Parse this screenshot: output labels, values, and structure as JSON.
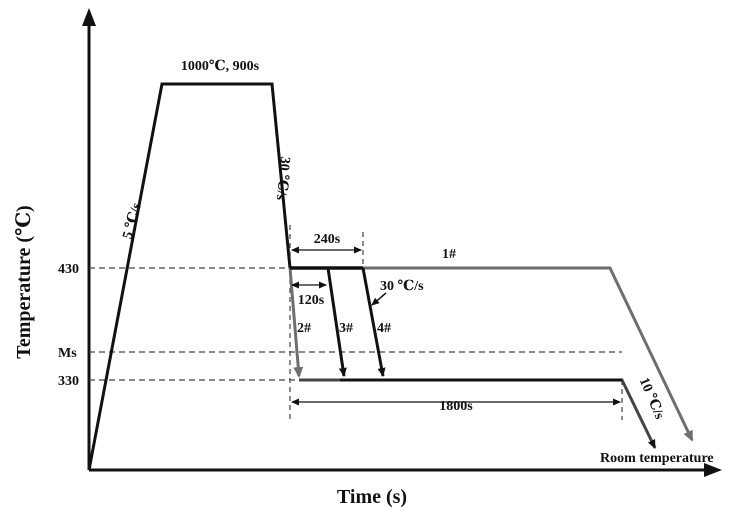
{
  "axes": {
    "x_title": "Time (s)",
    "y_title": "Temperature (℃)"
  },
  "y_ticks": {
    "t430": "430",
    "ms": "Ms",
    "t330": "330"
  },
  "labels": {
    "hold": "1000℃, 900s",
    "heat_rate": "5 ℃/s",
    "cool_rate_1": "30 ℃/s",
    "cool_rate_2": "30 ℃/s",
    "cool_rate_3": "10 ℃/s",
    "d240": "240s",
    "d120": "120s",
    "d1800": "1800s",
    "s1": "1#",
    "s2": "2#",
    "s3": "3#",
    "s4": "4#",
    "room": "Room temperature"
  },
  "colors": {
    "line": "#111111",
    "path_gray": "#6e6e6e",
    "dashed": "#444444"
  }
}
